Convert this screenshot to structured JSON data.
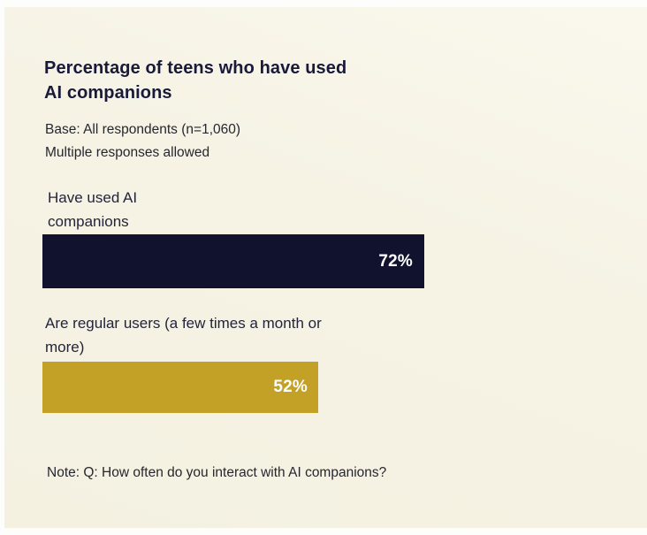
{
  "header": {
    "title_line1": "Percentage of teens who have used",
    "title_line2": "AI companions",
    "base_line1": "Base: All respondents (n=1,060)",
    "base_line2": "Multiple responses allowed"
  },
  "bars": [
    {
      "label_line1": "Have used AI",
      "label_line2": "companions",
      "value": 72,
      "value_label": "72%",
      "color": "#11132e"
    },
    {
      "label_line1": "Are regular users (a few times a month or",
      "label_line2": "more)",
      "value": 52,
      "value_label": "52%",
      "color": "#c3a127"
    }
  ],
  "note": "Note: Q: How often do you interact with AI companions?",
  "colors": {
    "panel_background": "#f5f2e3",
    "page_background": "#fdfdfb",
    "title_text": "#191a3a",
    "body_text": "#26262e",
    "bar_navy": "#11132e",
    "bar_gold": "#c3a127",
    "bar_value_text": "#ffffff"
  },
  "chart_data": {
    "type": "bar",
    "orientation": "horizontal",
    "title": "Percentage of teens who have used AI companions",
    "subtitle": "Base: All respondents (n=1,060) — Multiple responses allowed",
    "categories": [
      "Have used AI companions",
      "Are regular users (a few times a month or more)"
    ],
    "values": [
      72,
      52
    ],
    "value_labels": [
      "72%",
      "52%"
    ],
    "bar_colors": [
      "#11132e",
      "#c3a127"
    ],
    "xlabel": "",
    "ylabel": "",
    "xlim": [
      0,
      100
    ],
    "grid": false,
    "legend": false,
    "annotations": [
      "Note: Q: How often do you interact with AI companions?"
    ]
  }
}
